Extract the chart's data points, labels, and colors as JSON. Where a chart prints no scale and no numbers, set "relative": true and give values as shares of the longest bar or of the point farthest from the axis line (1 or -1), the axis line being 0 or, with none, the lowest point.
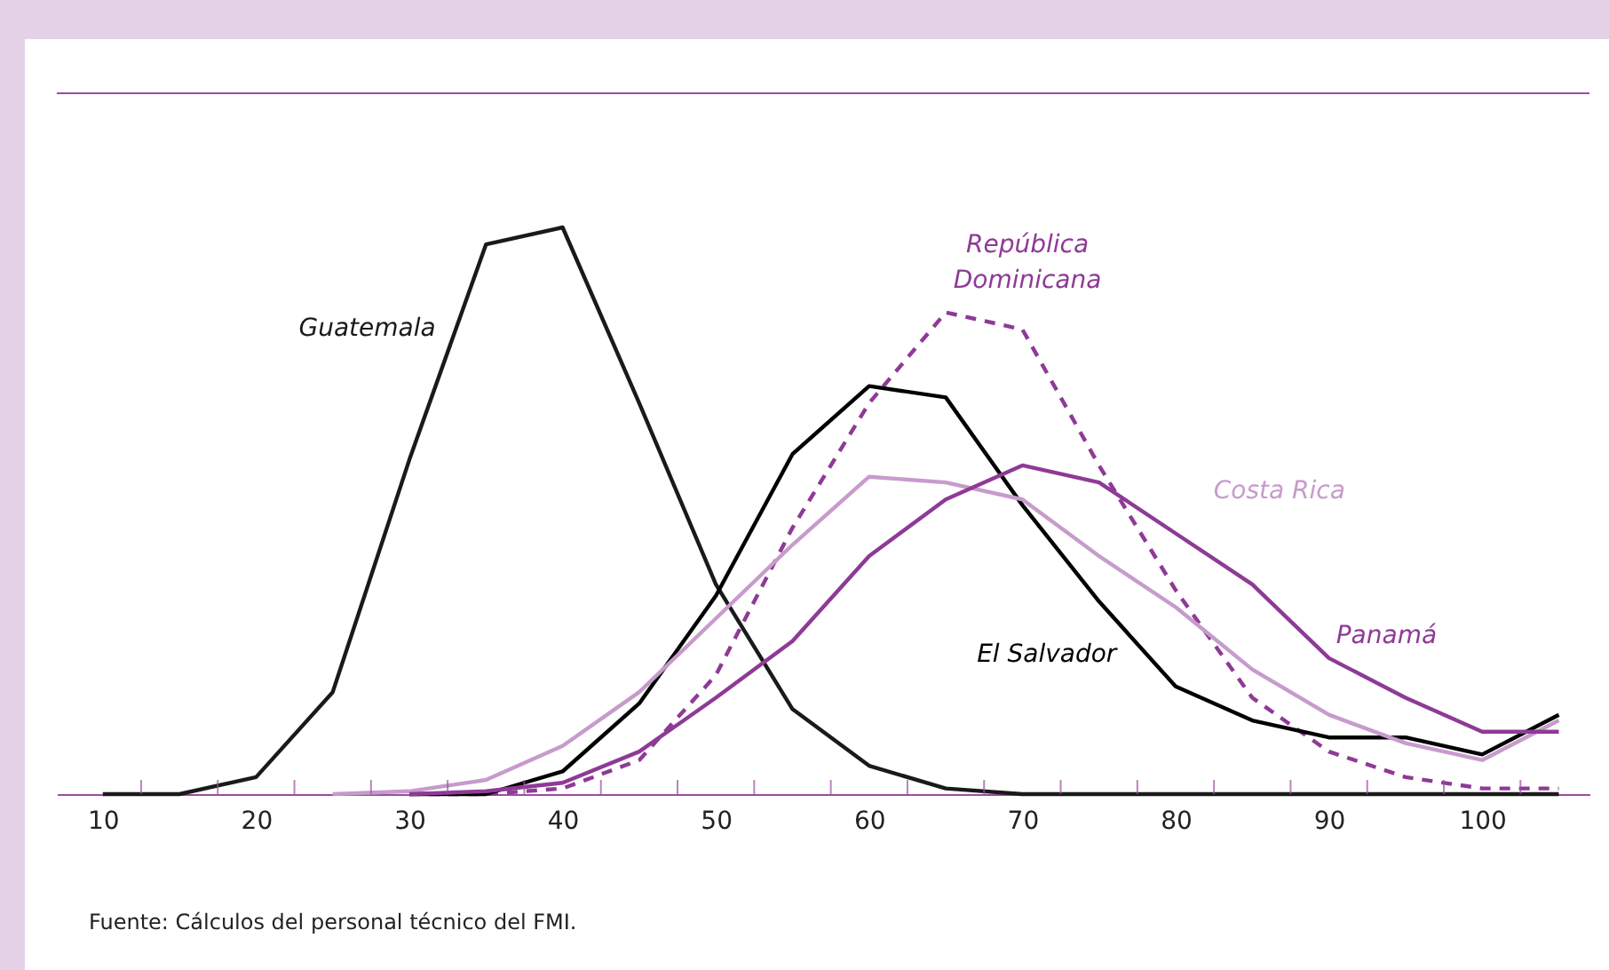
{
  "chart_data": {
    "type": "line",
    "relative": true,
    "x": [
      10,
      15,
      20,
      25,
      30,
      35,
      40,
      45,
      50,
      55,
      60,
      65,
      70,
      75,
      80,
      85,
      90,
      95,
      100,
      105
    ],
    "xlim": [
      7,
      107
    ],
    "xticks": [
      10,
      20,
      30,
      40,
      50,
      60,
      70,
      80,
      90,
      100,
      {
        "value": 12.5,
        "label": null
      },
      {
        "value": 17.5,
        "label": null
      },
      {
        "value": 22.5,
        "label": null
      },
      {
        "value": 27.5,
        "label": null
      },
      {
        "value": 32.5,
        "label": null
      },
      {
        "value": 37.5,
        "label": null
      },
      {
        "value": 42.5,
        "label": null
      },
      {
        "value": 47.5,
        "label": null
      },
      {
        "value": 52.5,
        "label": null
      },
      {
        "value": 57.5,
        "label": null
      },
      {
        "value": 62.5,
        "label": null
      },
      {
        "value": 67.5,
        "label": null
      },
      {
        "value": 72.5,
        "label": null
      },
      {
        "value": 77.5,
        "label": null
      },
      {
        "value": 82.5,
        "label": null
      },
      {
        "value": 87.5,
        "label": null
      },
      {
        "value": 92.5,
        "label": null
      },
      {
        "value": 97.5,
        "label": null
      },
      {
        "value": 102.5,
        "label": null
      }
    ],
    "series": [
      {
        "name": "Guatemala",
        "color": "#1a1a1a",
        "values": [
          0,
          0,
          0.03,
          0.18,
          0.59,
          0.97,
          1,
          0.69,
          0.37,
          0.15,
          0.05,
          0.01,
          0,
          0,
          0,
          0,
          0,
          0,
          0,
          0
        ]
      },
      {
        "name": "República Dominicana",
        "color": "#8e3a96",
        "line_style": "dashed",
        "values": [
          null,
          null,
          null,
          null,
          0,
          0,
          0.01,
          0.06,
          0.21,
          0.47,
          0.69,
          0.85,
          0.82,
          0.58,
          0.36,
          0.17,
          0.075,
          0.03,
          0.01,
          0.01
        ]
      },
      {
        "name": "El Salvador",
        "color": "#000000",
        "values": [
          null,
          null,
          null,
          null,
          0,
          0,
          0.04,
          0.16,
          0.35,
          0.6,
          0.72,
          0.7,
          0.51,
          0.34,
          0.19,
          0.13,
          0.1,
          0.1,
          0.07,
          0.14
        ]
      },
      {
        "name": "Costa Rica",
        "color": "#c79bcc",
        "values": [
          null,
          null,
          null,
          0,
          0.005,
          0.025,
          0.085,
          0.18,
          0.31,
          0.44,
          0.56,
          0.55,
          0.52,
          0.42,
          0.33,
          0.22,
          0.14,
          0.09,
          0.06,
          0.13
        ]
      },
      {
        "name": "Panamá",
        "color": "#8e3a96",
        "values": [
          null,
          null,
          null,
          null,
          0,
          0.005,
          0.02,
          0.075,
          0.17,
          0.27,
          0.42,
          0.52,
          0.58,
          0.55,
          0.46,
          0.37,
          0.24,
          0.17,
          0.11,
          0.11
        ]
      }
    ],
    "annotations": [
      "Fuente: Cálculos del personal técnico del FMI."
    ]
  }
}
